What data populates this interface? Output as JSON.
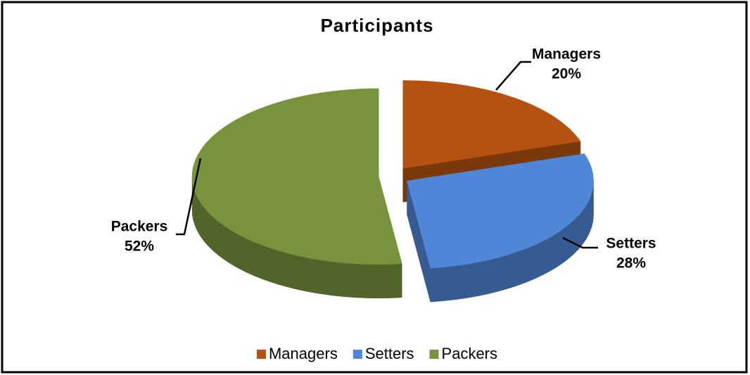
{
  "chart_data": {
    "type": "pie",
    "title": "Participants",
    "categories": [
      "Managers",
      "Setters",
      "Packers"
    ],
    "values": [
      20,
      28,
      52
    ],
    "value_labels": [
      "20%",
      "28%",
      "52%"
    ],
    "colors": [
      "#b5520f",
      "#4f86d6",
      "#77933c"
    ],
    "legend": "bottom"
  }
}
